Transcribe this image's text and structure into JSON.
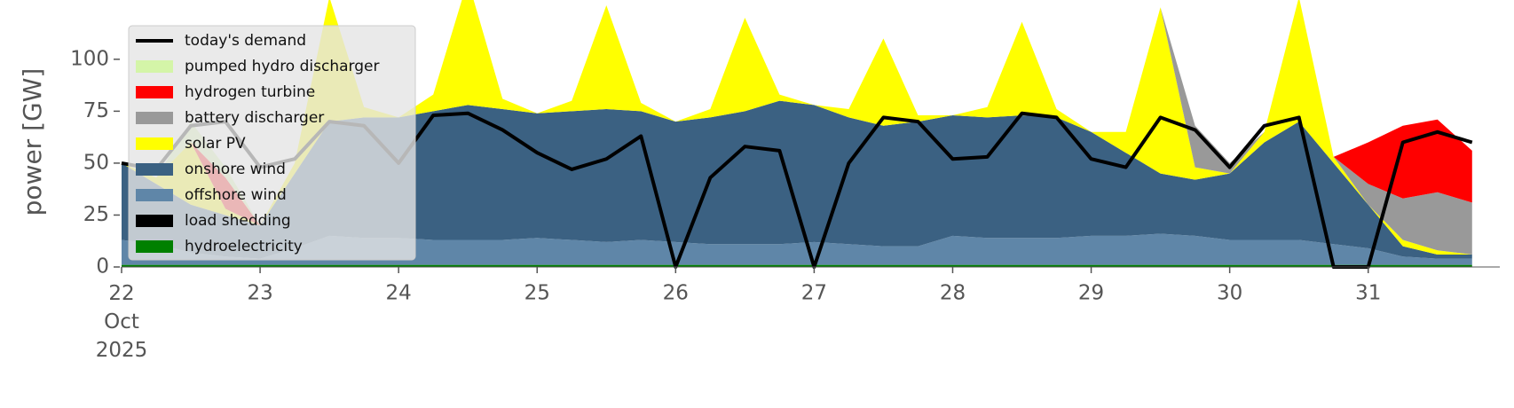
{
  "chart_data": {
    "type": "area",
    "ylabel": "power [GW]",
    "x": [
      22,
      22.25,
      22.5,
      22.75,
      23,
      23.25,
      23.5,
      23.75,
      24,
      24.25,
      24.5,
      24.75,
      25,
      25.25,
      25.5,
      25.75,
      26,
      26.25,
      26.5,
      26.75,
      27,
      27.25,
      27.5,
      27.75,
      28,
      28.25,
      28.5,
      28.75,
      29,
      29.25,
      29.5,
      29.75,
      30,
      30.25,
      30.5,
      30.75,
      31,
      31.25,
      31.5,
      31.75
    ],
    "xlim": [
      22,
      31.95
    ],
    "xticks": [
      {
        "value": 22,
        "label": "22\nOct\n2025"
      },
      23,
      24,
      25,
      26,
      27,
      28,
      29,
      30,
      31
    ],
    "ylim": [
      0,
      120
    ],
    "yticks": [
      0,
      25,
      50,
      75,
      100
    ],
    "legend": "upper left",
    "series": [
      {
        "name": "today's demand",
        "type": "line",
        "color": "#000000",
        "values": [
          50,
          47,
          68,
          70,
          48,
          52,
          70,
          68,
          50,
          73,
          74,
          66,
          55,
          47,
          52,
          63,
          0,
          43,
          58,
          56,
          0,
          50,
          72,
          70,
          52,
          53,
          74,
          72,
          52,
          48,
          72,
          66,
          48,
          68,
          72,
          0,
          0,
          60,
          65,
          60
        ]
      },
      {
        "name": "pumped hydro discharger",
        "type": "area",
        "color": "#d4f5a8",
        "values": [
          0,
          0,
          10,
          5,
          0,
          0,
          0,
          0,
          0,
          0,
          0,
          0,
          0,
          0,
          0,
          0,
          0,
          0,
          0,
          0,
          0,
          0,
          0,
          0,
          0,
          0,
          0,
          0,
          0,
          0,
          0,
          0,
          0,
          0,
          0,
          0,
          0,
          0,
          0,
          0
        ]
      },
      {
        "name": "hydrogen turbine",
        "type": "area",
        "color": "#ff0000",
        "values": [
          0,
          0,
          0,
          15,
          0,
          0,
          0,
          0,
          0,
          0,
          0,
          0,
          0,
          0,
          0,
          0,
          0,
          0,
          0,
          0,
          0,
          0,
          0,
          0,
          0,
          0,
          0,
          0,
          0,
          0,
          0,
          0,
          0,
          0,
          0,
          0,
          20,
          35,
          35,
          25
        ]
      },
      {
        "name": "battery discharger",
        "type": "area",
        "color": "#999999",
        "values": [
          0,
          0,
          0,
          0,
          0,
          0,
          0,
          0,
          0,
          0,
          0,
          0,
          0,
          0,
          0,
          0,
          0,
          0,
          0,
          0,
          0,
          0,
          0,
          0,
          0,
          0,
          0,
          0,
          0,
          0,
          0,
          20,
          5,
          0,
          0,
          0,
          10,
          20,
          28,
          25
        ]
      },
      {
        "name": "solar PV",
        "type": "area",
        "color": "#ffff00",
        "values": [
          0,
          3,
          30,
          3,
          0,
          5,
          60,
          5,
          0,
          8,
          60,
          5,
          0,
          5,
          50,
          4,
          0,
          4,
          45,
          3,
          0,
          4,
          42,
          3,
          0,
          5,
          45,
          4,
          0,
          10,
          80,
          6,
          0,
          5,
          60,
          3,
          0,
          3,
          2,
          0
        ]
      },
      {
        "name": "onshore wind",
        "type": "area",
        "color": "#3b6182",
        "values": [
          37,
          29,
          23,
          20,
          16,
          36,
          55,
          58,
          58,
          62,
          65,
          63,
          60,
          62,
          64,
          62,
          58,
          61,
          64,
          69,
          66,
          61,
          58,
          60,
          58,
          58,
          59,
          58,
          50,
          40,
          29,
          27,
          32,
          47,
          57,
          39,
          21,
          5,
          2,
          2
        ]
      },
      {
        "name": "offshore wind",
        "type": "area",
        "color": "#5f86a8",
        "values": [
          12,
          10,
          6,
          4,
          3,
          8,
          14,
          13,
          13,
          12,
          12,
          12,
          13,
          12,
          11,
          12,
          11,
          10,
          10,
          10,
          11,
          10,
          9,
          9,
          14,
          13,
          13,
          13,
          14,
          14,
          15,
          14,
          12,
          12,
          12,
          10,
          8,
          4,
          3,
          3
        ]
      },
      {
        "name": "load shedding",
        "type": "area",
        "color": "#000000",
        "values": [
          0,
          0,
          0,
          0,
          0,
          0,
          0,
          0,
          0,
          0,
          0,
          0,
          0,
          0,
          0,
          0,
          0,
          0,
          0,
          0,
          0,
          0,
          0,
          0,
          0,
          0,
          0,
          0,
          0,
          0,
          0,
          0,
          0,
          0,
          0,
          0,
          0,
          0,
          0,
          0
        ]
      },
      {
        "name": "hydroelectricity",
        "type": "area",
        "color": "#008000",
        "values": [
          1,
          1,
          1,
          1,
          1,
          1,
          1,
          1,
          1,
          1,
          1,
          1,
          1,
          1,
          1,
          1,
          1,
          1,
          1,
          1,
          1,
          1,
          1,
          1,
          1,
          1,
          1,
          1,
          1,
          1,
          1,
          1,
          1,
          1,
          1,
          1,
          1,
          1,
          1,
          1
        ]
      }
    ]
  }
}
